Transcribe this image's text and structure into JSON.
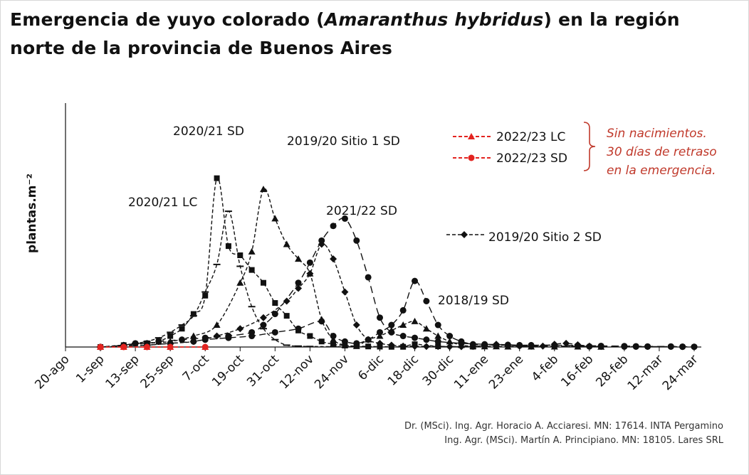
{
  "title": {
    "part1": "Emergencia de yuyo colorado (",
    "species": "Amaranthus hybridus",
    "part2": ") en la región",
    "line2": "norte de la provincia de Buenos Aires"
  },
  "credits": [
    "Dr. (MSci). Ing. Agr. Horacio A. Acciaresi. MN: 17614. INTA Pergamino",
    "Ing. Agr. (MSci). Martín A. Principiano. MN: 18105. Lares SRL"
  ],
  "note": [
    "Sin nacimientos.",
    "30 días de retraso",
    "en la emergencia."
  ],
  "colors": {
    "black": "#111111",
    "red": "#e32420",
    "note": "#c0392b"
  },
  "chart_data": {
    "type": "line",
    "ylabel": "plantas.m⁻²",
    "x_ticks": [
      "20-ago",
      "1-sep",
      "13-sep",
      "25-sep",
      "7-oct",
      "19-oct",
      "31-oct",
      "12-nov",
      "24-nov",
      "6-dic",
      "18-dic",
      "30-dic",
      "11-ene",
      "23-ene",
      "4-feb",
      "16-feb",
      "28-feb",
      "12-mar",
      "24-mar"
    ],
    "x_tick_day_offsets": [
      0,
      12,
      24,
      36,
      48,
      60,
      72,
      84,
      96,
      108,
      120,
      132,
      144,
      156,
      168,
      180,
      192,
      204,
      216
    ],
    "x_range_day_offsets": [
      0,
      216
    ],
    "x_units_note": "days after 20-ago",
    "ylim": [
      0,
      100
    ],
    "y_ticks_visible": false,
    "grid": false,
    "series": [
      {
        "name": "2020/21 LC",
        "marker": "dash",
        "color": "#111111",
        "x": [
          12,
          20,
          24,
          28,
          32,
          36,
          40,
          44,
          48,
          52,
          56,
          60,
          64,
          68,
          72,
          76,
          80,
          84,
          92,
          104
        ],
        "y": [
          0,
          1,
          2,
          3,
          5,
          8,
          12,
          17,
          30,
          45,
          74,
          44,
          22,
          10,
          4,
          1,
          0.5,
          0.3,
          0.2,
          0.1
        ]
      },
      {
        "name": "2020/21 SD",
        "marker": "square",
        "color": "#111111",
        "x": [
          12,
          20,
          28,
          32,
          36,
          40,
          44,
          48,
          52,
          56,
          60,
          64,
          68,
          72,
          76,
          80,
          84,
          88,
          92,
          96,
          100,
          104,
          108,
          112,
          116,
          120,
          128,
          140
        ],
        "y": [
          0,
          1,
          2,
          3,
          6,
          10,
          18,
          28,
          92,
          55,
          50,
          42,
          35,
          24,
          17,
          9,
          6,
          3,
          1.5,
          0.8,
          0.5,
          0.3,
          0.2,
          0.1,
          0.1,
          1.5,
          0.4,
          0.2
        ]
      },
      {
        "name": "2019/20 Sitio 1 SD",
        "marker": "triangle",
        "color": "#111111",
        "x": [
          12,
          20,
          28,
          36,
          44,
          52,
          60,
          64,
          68,
          72,
          76,
          80,
          84,
          88,
          92,
          96,
          100,
          104,
          108,
          112,
          116,
          120,
          124,
          128,
          132,
          136,
          140,
          144,
          148,
          152,
          160,
          168,
          176,
          184
        ],
        "y": [
          0,
          1,
          2,
          3,
          6,
          12,
          35,
          52,
          86,
          70,
          56,
          48,
          40,
          15,
          4,
          1,
          0.5,
          4,
          6,
          9,
          12,
          14,
          10,
          6,
          3,
          1,
          0.5,
          0.3,
          0.3,
          0.2,
          0.2,
          0.2,
          0.2,
          0.1
        ]
      },
      {
        "name": "2019/20 Sitio 2 SD",
        "marker": "diamond",
        "color": "#111111",
        "x": [
          12,
          20,
          28,
          36,
          44,
          52,
          60,
          68,
          76,
          80,
          84,
          88,
          92,
          96,
          100,
          104,
          108,
          112,
          116,
          120,
          124,
          128,
          132,
          136,
          140,
          144,
          148,
          152,
          156,
          160,
          164,
          168,
          172,
          176,
          180,
          184
        ],
        "y": [
          0,
          0.5,
          1,
          2,
          3,
          6,
          10,
          16,
          25,
          32,
          40,
          56,
          48,
          30,
          12,
          4,
          2,
          1,
          0.5,
          0.4,
          0.3,
          0.3,
          0.2,
          0.2,
          0.3,
          0.8,
          1.5,
          1,
          0.5,
          0.4,
          0.5,
          1.5,
          2,
          1.2,
          0.5,
          0.3
        ]
      },
      {
        "name": "2021/22 SD",
        "marker": "circle",
        "color": "#111111",
        "x": [
          12,
          20,
          24,
          28,
          32,
          40,
          48,
          56,
          64,
          68,
          72,
          80,
          84,
          88,
          92,
          96,
          100,
          104,
          108,
          112,
          116,
          120,
          124,
          128,
          136,
          144,
          152,
          156,
          160,
          168,
          176,
          184,
          192,
          196,
          200,
          208,
          212,
          216
        ],
        "y": [
          0,
          1,
          2,
          2,
          3,
          4,
          5,
          6,
          8,
          12,
          18,
          35,
          46,
          58,
          66,
          70,
          58,
          38,
          16,
          8,
          6,
          5,
          4,
          3,
          2,
          1.5,
          1.2,
          1,
          1,
          1,
          0.8,
          0.6,
          0.5,
          0.4,
          0.3,
          0.3,
          0.2,
          0.1
        ]
      },
      {
        "name": "2018/19 SD",
        "marker": "circle",
        "color": "#111111",
        "x": [
          12,
          20,
          28,
          36,
          44,
          48,
          56,
          64,
          72,
          80,
          88,
          92,
          96,
          100,
          104,
          108,
          112,
          116,
          120,
          124,
          128,
          132,
          136,
          140,
          144,
          148,
          152,
          156,
          160,
          168,
          176,
          180,
          184,
          192,
          196,
          200,
          208,
          212,
          216
        ],
        "y": [
          0,
          0.5,
          1,
          2,
          3,
          4,
          5,
          6,
          8,
          10,
          14,
          6,
          3,
          2,
          4,
          8,
          12,
          20,
          36,
          25,
          12,
          6,
          3,
          1.5,
          1,
          1,
          1,
          0.8,
          0.6,
          0.5,
          0.4,
          0.3,
          0.3,
          0.2,
          0.2,
          0.2,
          0.2,
          0.1,
          0.1
        ]
      },
      {
        "name": "2022/23 LC",
        "marker": "triangle",
        "color": "#e32420",
        "x": [
          12,
          20,
          28,
          36,
          48
        ],
        "y": [
          0,
          0,
          0,
          0,
          0
        ]
      },
      {
        "name": "2022/23 SD",
        "marker": "circle",
        "color": "#e32420",
        "x": [
          12,
          20,
          28,
          36,
          48
        ],
        "y": [
          0,
          0,
          0,
          0,
          0
        ]
      }
    ],
    "series_labels_on_plot": [
      "2020/21 SD",
      "2019/20 Sitio 1 SD",
      "2020/21 LC",
      "2021/22 SD",
      "2019/20 Sitio 2 SD",
      "2018/19 SD"
    ],
    "legend": [
      "2022/23 LC",
      "2022/23 SD"
    ],
    "legend_placement": "top-right"
  }
}
